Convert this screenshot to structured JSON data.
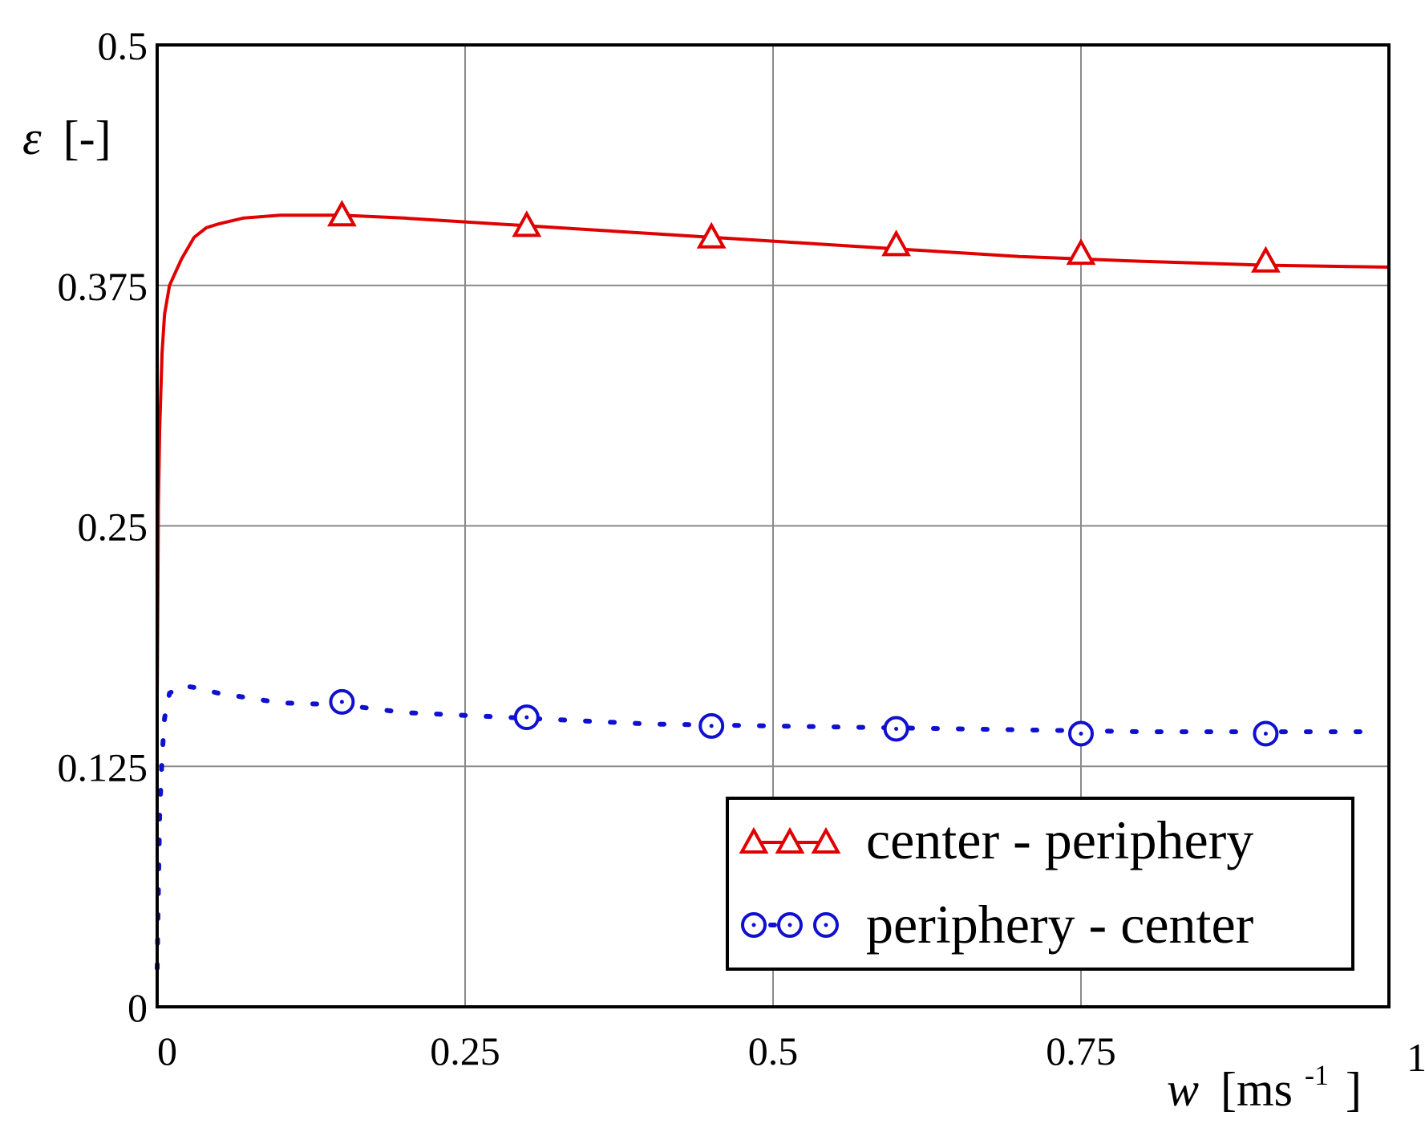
{
  "chart_data": {
    "type": "line",
    "title": "",
    "xlabel": {
      "base": "w",
      "unit_prefix": "[ms",
      "unit_exp": "-1",
      "unit_suffix": "]"
    },
    "ylabel": {
      "symbol": "ε",
      "unit": "[-]"
    },
    "xlim": [
      0,
      1
    ],
    "ylim": [
      0,
      0.5
    ],
    "xticks": [
      0,
      0.25,
      0.5,
      0.75,
      1
    ],
    "xtick_labels": [
      "0",
      "0.25",
      "0.5",
      "0.75",
      "1"
    ],
    "yticks": [
      0,
      0.125,
      0.25,
      0.375,
      0.5
    ],
    "ytick_labels": [
      "0",
      "0.125",
      "0.25",
      "0.375",
      "0.5"
    ],
    "grid": true,
    "legend_position": "bottom-right",
    "series": [
      {
        "name": "center - periphery",
        "color": "#e00000",
        "line_style": "solid",
        "marker": "triangle",
        "x": [
          0,
          0.001,
          0.002,
          0.004,
          0.006,
          0.01,
          0.015,
          0.02,
          0.03,
          0.04,
          0.05,
          0.07,
          0.1,
          0.15,
          0.2,
          0.3,
          0.4,
          0.5,
          0.6,
          0.7,
          0.8,
          0.9,
          1.0
        ],
        "y": [
          0.16,
          0.26,
          0.3,
          0.34,
          0.36,
          0.375,
          0.382,
          0.389,
          0.4,
          0.405,
          0.407,
          0.41,
          0.4115,
          0.4115,
          0.41,
          0.406,
          0.402,
          0.398,
          0.394,
          0.39,
          0.3875,
          0.3855,
          0.3845
        ],
        "marker_x": [
          0.15,
          0.3,
          0.45,
          0.6,
          0.75,
          0.9
        ],
        "marker_y": [
          0.4115,
          0.406,
          0.4,
          0.396,
          0.3915,
          0.3875
        ]
      },
      {
        "name": "periphery - center",
        "color": "#1010d0",
        "line_style": "dotted",
        "marker": "circle",
        "x": [
          0,
          0.001,
          0.002,
          0.004,
          0.006,
          0.01,
          0.02,
          0.03,
          0.05,
          0.08,
          0.1,
          0.15,
          0.2,
          0.3,
          0.4,
          0.5,
          0.6,
          0.7,
          0.8,
          0.9,
          0.99
        ],
        "y": [
          0.02,
          0.06,
          0.1,
          0.13,
          0.15,
          0.163,
          0.167,
          0.166,
          0.163,
          0.16,
          0.158,
          0.157,
          0.153,
          0.15,
          0.147,
          0.146,
          0.145,
          0.144,
          0.143,
          0.143,
          0.143
        ],
        "marker_x": [
          0.15,
          0.3,
          0.45,
          0.6,
          0.75,
          0.9
        ],
        "marker_y": [
          0.1585,
          0.1505,
          0.146,
          0.1445,
          0.142,
          0.142
        ]
      }
    ]
  }
}
